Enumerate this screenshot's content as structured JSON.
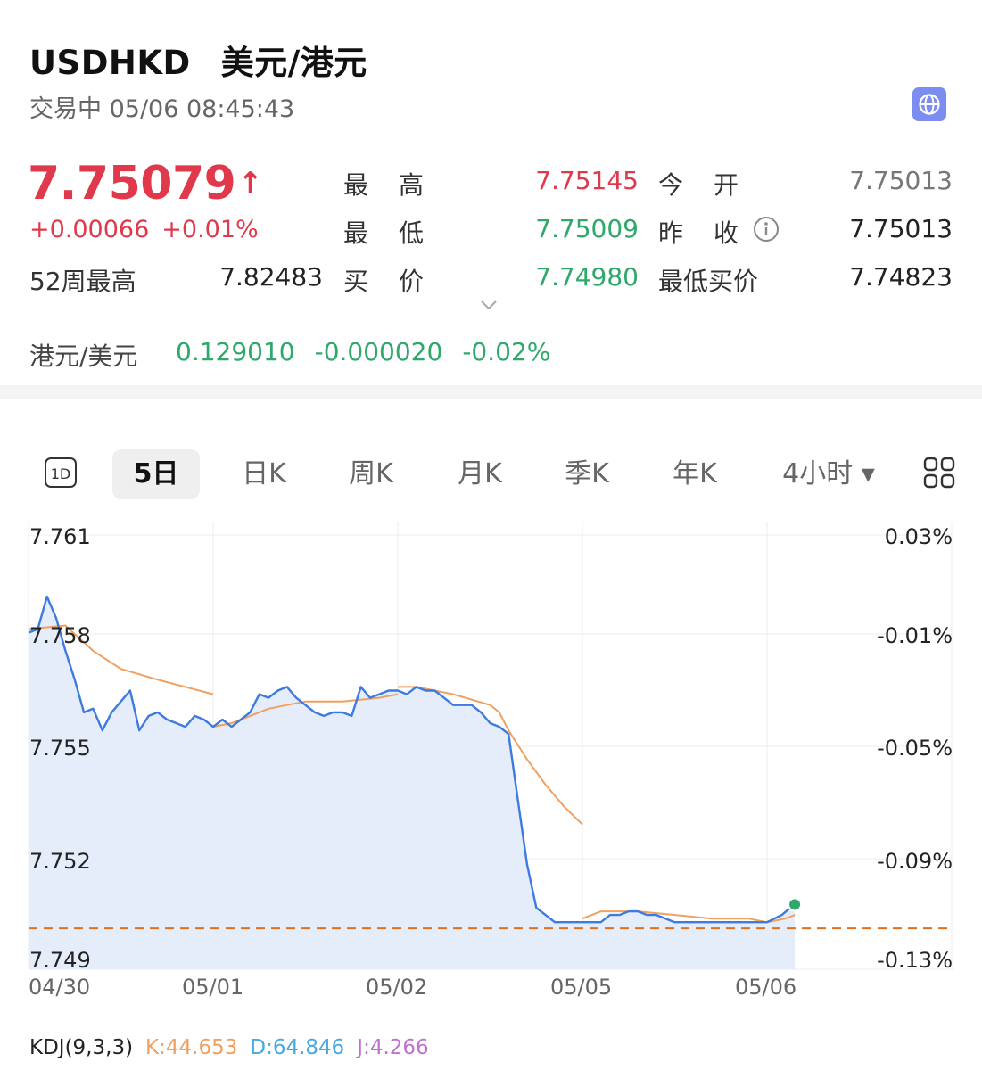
{
  "header": {
    "symbol": "USDHKD",
    "name": "美元/港元",
    "status": "交易中 05/06 08:45:43",
    "globe_icon": "globe-icon"
  },
  "quote": {
    "price": "7.75079",
    "price_arrow": "↑",
    "change": "+0.00066",
    "change_pct": "+0.01%",
    "high_label": "最高",
    "high": "7.75145",
    "open_label": "今开",
    "open": "7.75013",
    "low_label": "最低",
    "low": "7.75009",
    "prev_close_label": "昨收",
    "prev_close": "7.75013",
    "wk52_high_label": "52周最高",
    "wk52_high": "7.82483",
    "bid_label": "买价",
    "bid": "7.74980",
    "lowest_bid_label": "最低买价",
    "lowest_bid": "7.74823",
    "expand_icon": "chevron-down-icon"
  },
  "inverse": {
    "label": "港元/美元",
    "value": "0.129010",
    "change": "-0.000020",
    "change_pct": "-0.02%"
  },
  "tabs": {
    "t1d": "1D",
    "t5d": "5日",
    "day": "日K",
    "week": "周K",
    "month": "月K",
    "quarter": "季K",
    "year": "年K",
    "h4": "4小时 ▾",
    "active": "5日"
  },
  "colors": {
    "up": "#e0394c",
    "down": "#2ea86b",
    "price_line": "#3d7be0",
    "avg_line": "#f0a060",
    "ref_line": "#e07020"
  },
  "chart_data": {
    "type": "line",
    "x_labels": [
      "04/30",
      "05/01",
      "05/02",
      "05/05",
      "05/06"
    ],
    "y_ticks_left": [
      "7.761",
      "7.758",
      "7.755",
      "7.752",
      "7.749"
    ],
    "y_ticks_right": [
      "0.03%",
      "-0.01%",
      "-0.05%",
      "-0.09%",
      "-0.13%"
    ],
    "ylim": [
      7.749,
      7.761
    ],
    "reference_line": 7.75013,
    "last_price": 7.75079,
    "series": [
      {
        "key": "price",
        "x": [
          0,
          0.05,
          0.1,
          0.15,
          0.2,
          0.25,
          0.3,
          0.35,
          0.4,
          0.45,
          0.5,
          0.55,
          0.6,
          0.65,
          0.7,
          0.75,
          0.8,
          0.85,
          0.9,
          0.95,
          1.0,
          1.05,
          1.1,
          1.15,
          1.2,
          1.25,
          1.3,
          1.35,
          1.4,
          1.45,
          1.5,
          1.55,
          1.6,
          1.65,
          1.7,
          1.75,
          1.8,
          1.85,
          1.9,
          1.95,
          2.0,
          2.05,
          2.1,
          2.15,
          2.2,
          2.25,
          2.3,
          2.35,
          2.4,
          2.45,
          2.5,
          2.55,
          2.6,
          2.65,
          2.7,
          2.75,
          2.8,
          2.85,
          2.9,
          2.95,
          3.0,
          3.05,
          3.1,
          3.15,
          3.2,
          3.25,
          3.3,
          3.35,
          3.4,
          3.45,
          3.5,
          3.55,
          3.6,
          3.65,
          3.7,
          3.75,
          3.8,
          3.85,
          3.9,
          3.95,
          4.0,
          4.08,
          4.15
        ],
        "y": [
          7.7583,
          7.7584,
          7.7593,
          7.7587,
          7.7578,
          7.757,
          7.7561,
          7.7562,
          7.7556,
          7.7561,
          7.7564,
          7.7567,
          7.7556,
          7.756,
          7.7561,
          7.7559,
          7.7558,
          7.7557,
          7.756,
          7.7559,
          7.7557,
          7.7559,
          7.7557,
          7.7559,
          7.7561,
          7.7566,
          7.7565,
          7.7567,
          7.7568,
          7.7565,
          7.7563,
          7.7561,
          7.756,
          7.7561,
          7.7561,
          7.756,
          7.7568,
          7.7565,
          7.7566,
          7.7567,
          7.7567,
          7.7566,
          7.7568,
          7.7567,
          7.7567,
          7.7565,
          7.7563,
          7.7563,
          7.7563,
          7.7561,
          7.7558,
          7.7557,
          7.7555,
          7.7537,
          7.7519,
          7.7507,
          7.7505,
          7.7503,
          7.7503,
          7.7503,
          7.7503,
          7.7503,
          7.7503,
          7.7505,
          7.7505,
          7.7506,
          7.7506,
          7.7505,
          7.7505,
          7.7504,
          7.7503,
          7.7503,
          7.7503,
          7.7503,
          7.7503,
          7.7503,
          7.7503,
          7.7503,
          7.7503,
          7.7503,
          7.7503,
          7.7505,
          7.7508
        ]
      },
      {
        "key": "average",
        "segments": [
          {
            "x": [
              0,
              0.2,
              0.35,
              0.5,
              0.7,
              1.0
            ],
            "y": [
              7.7584,
              7.7585,
              7.7578,
              7.7573,
              7.757,
              7.7566
            ]
          },
          {
            "x": [
              1.0,
              1.1,
              1.2,
              1.3,
              1.4,
              1.5,
              1.7,
              1.9,
              2.0
            ],
            "y": [
              7.7557,
              7.7558,
              7.756,
              7.7562,
              7.7563,
              7.7564,
              7.7564,
              7.7565,
              7.7566
            ]
          },
          {
            "x": [
              2.0,
              2.1,
              2.3,
              2.5,
              2.55,
              2.6,
              2.7,
              2.8,
              2.9,
              3.0
            ],
            "y": [
              7.7568,
              7.7568,
              7.7566,
              7.7563,
              7.7561,
              7.7556,
              7.7548,
              7.7541,
              7.7535,
              7.753
            ]
          },
          {
            "x": [
              3.0,
              3.1,
              3.3,
              3.5,
              3.7,
              3.9,
              4.0,
              4.1,
              4.15
            ],
            "y": [
              7.7504,
              7.7506,
              7.7506,
              7.7505,
              7.7504,
              7.7504,
              7.7503,
              7.7504,
              7.7505
            ]
          }
        ]
      }
    ]
  },
  "indicator": {
    "name": "KDJ(9,3,3)",
    "k": "K:44.653",
    "d": "D:64.846",
    "j": "J:4.266"
  }
}
